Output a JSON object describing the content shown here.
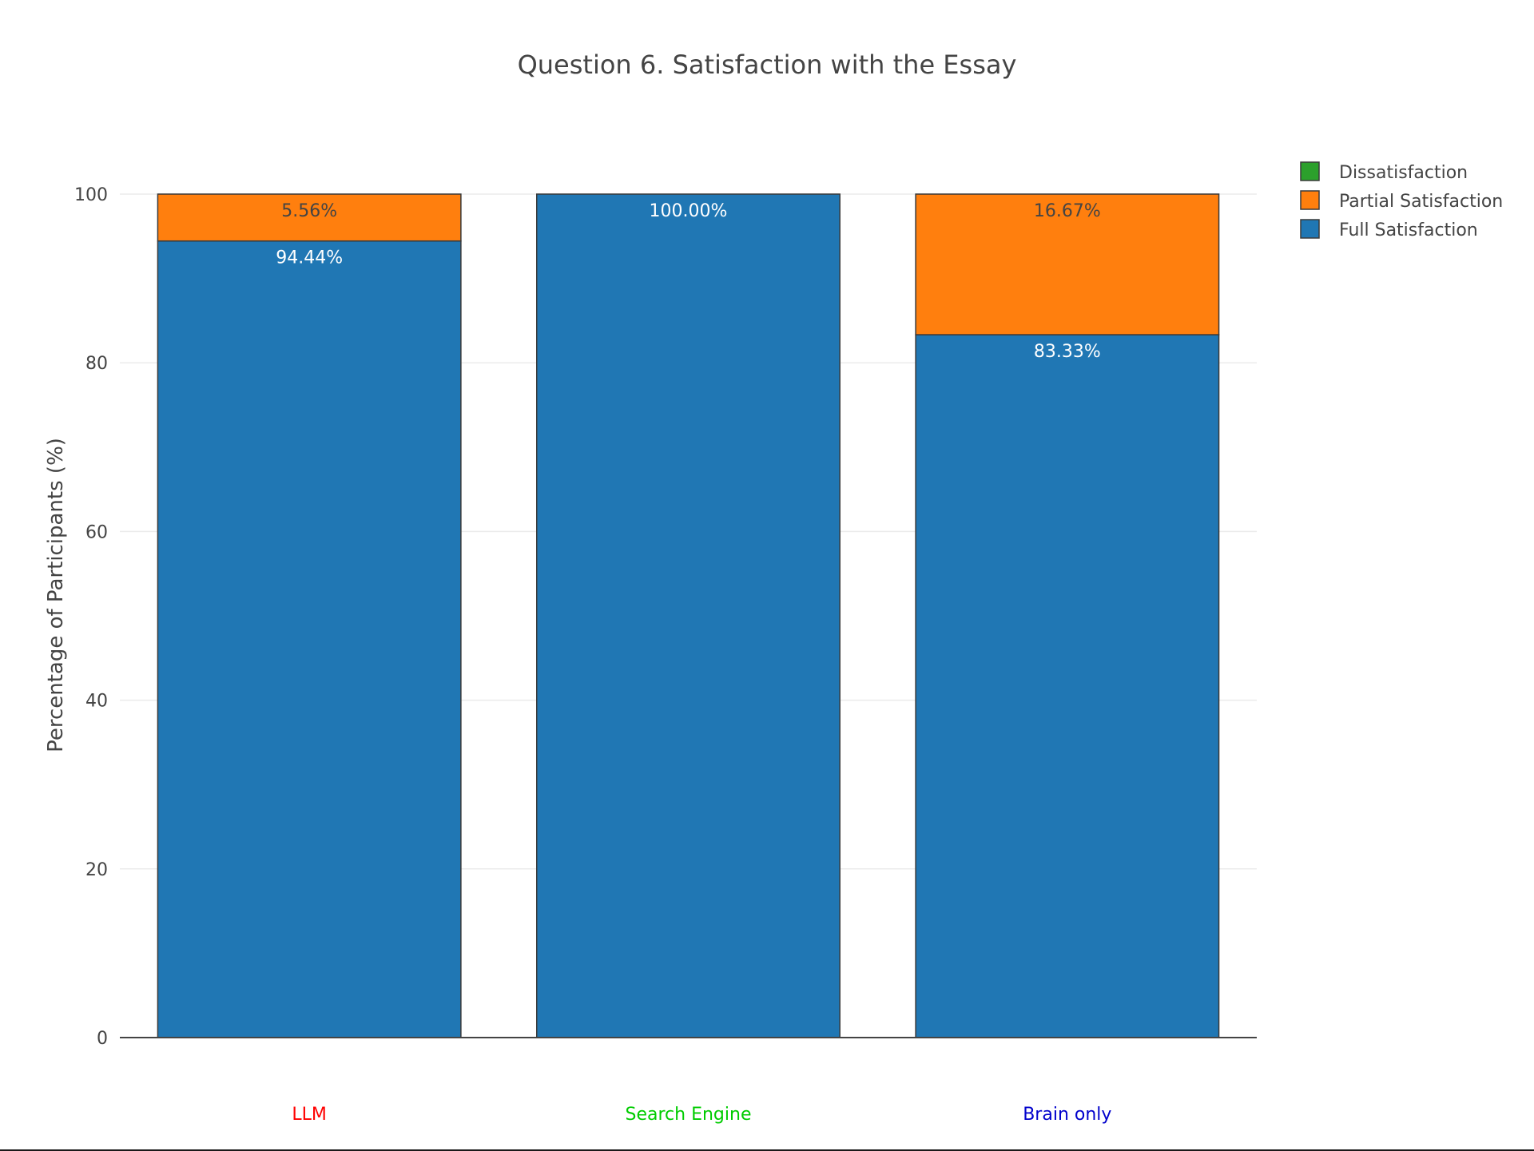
{
  "chart_data": {
    "type": "bar",
    "stacked": true,
    "title": "Question 6. Satisfaction with the Essay",
    "ylabel": "Percentage of Participants (%)",
    "xlabel": "",
    "ylim": [
      0,
      100
    ],
    "yticks": [
      0,
      20,
      40,
      60,
      80,
      100
    ],
    "grid": true,
    "legend_position": "top-right",
    "categories": [
      "LLM",
      "Search Engine",
      "Brain only"
    ],
    "category_colors": [
      "#ff0000",
      "#00cc00",
      "#0000cc"
    ],
    "series": [
      {
        "name": "Full Satisfaction",
        "color": "#2077b4",
        "values": [
          94.44,
          100.0,
          83.33
        ],
        "labels": [
          "94.44%",
          "100.00%",
          "83.33%"
        ],
        "label_color": "#ffffff"
      },
      {
        "name": "Partial Satisfaction",
        "color": "#ff7f0e",
        "values": [
          5.56,
          0,
          16.67
        ],
        "labels": [
          "5.56%",
          "",
          "16.67%"
        ],
        "label_color": "#444444"
      },
      {
        "name": "Dissatisfaction",
        "color": "#2ca02c",
        "values": [
          0,
          0,
          0
        ],
        "labels": [
          "",
          "",
          ""
        ],
        "label_color": "#444444"
      }
    ],
    "legend_order": [
      "Dissatisfaction",
      "Partial Satisfaction",
      "Full Satisfaction"
    ]
  }
}
